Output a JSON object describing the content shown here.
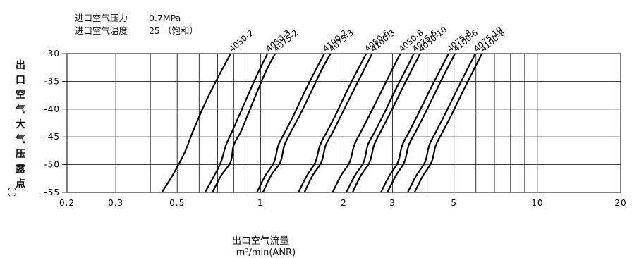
{
  "conditions": [
    {
      "label": "进口空气压力",
      "value": "0.7MPa"
    },
    {
      "label": "进口空气温度",
      "value": "25 （饱和）"
    }
  ],
  "chart_data": {
    "type": "line",
    "xscale": "log",
    "xlim": [
      0.2,
      20
    ],
    "ylim": [
      -55,
      -30
    ],
    "xticks": [
      0.2,
      0.3,
      0.5,
      1,
      2,
      3,
      5,
      10,
      20
    ],
    "xtick_labels": [
      "0.2",
      "0.3",
      "0.5",
      "1",
      "2",
      "3",
      "5",
      "10",
      "20"
    ],
    "yticks": [
      -30,
      -35,
      -40,
      -45,
      -50,
      -55
    ],
    "ytick_labels": [
      "-30",
      "-35",
      "-40",
      "-45",
      "-50",
      "-55"
    ],
    "ylabel": "出口空气大气压露点",
    "ylabel_unit": "（ ）",
    "xlabel": "出口空气流量",
    "xlabel_unit": "m³/min(ANR)",
    "grid": true,
    "series": [
      {
        "name": "4050-2",
        "points": [
          [
            0.44,
            -55
          ],
          [
            0.48,
            -52
          ],
          [
            0.53,
            -48
          ],
          [
            0.57,
            -44
          ],
          [
            0.63,
            -39
          ],
          [
            0.69,
            -35
          ],
          [
            0.78,
            -30
          ]
        ]
      },
      {
        "name": "4050-3",
        "points": [
          [
            0.63,
            -55
          ],
          [
            0.68,
            -52
          ],
          [
            0.72,
            -49.5
          ],
          [
            0.75,
            -46.5
          ],
          [
            0.79,
            -44
          ],
          [
            0.84,
            -41
          ],
          [
            0.91,
            -37
          ],
          [
            0.99,
            -33
          ],
          [
            1.06,
            -30
          ]
        ]
      },
      {
        "name": "4075-2",
        "points": [
          [
            0.67,
            -55
          ],
          [
            0.72,
            -52
          ],
          [
            0.78,
            -49.5
          ],
          [
            0.8,
            -46.5
          ],
          [
            0.85,
            -44
          ],
          [
            0.9,
            -41
          ],
          [
            0.97,
            -37
          ],
          [
            1.05,
            -33
          ],
          [
            1.13,
            -30
          ]
        ]
      },
      {
        "name": "4100-2",
        "points": [
          [
            0.97,
            -55
          ],
          [
            1.04,
            -52
          ],
          [
            1.12,
            -49.5
          ],
          [
            1.16,
            -46.5
          ],
          [
            1.23,
            -44
          ],
          [
            1.32,
            -41
          ],
          [
            1.44,
            -37
          ],
          [
            1.58,
            -33
          ],
          [
            1.7,
            -30
          ]
        ]
      },
      {
        "name": "4075-3",
        "points": [
          [
            1.02,
            -55
          ],
          [
            1.09,
            -52
          ],
          [
            1.18,
            -49.5
          ],
          [
            1.22,
            -46.5
          ],
          [
            1.29,
            -44
          ],
          [
            1.39,
            -41
          ],
          [
            1.52,
            -37
          ],
          [
            1.66,
            -33
          ],
          [
            1.79,
            -30
          ]
        ]
      },
      {
        "name": "4050-6",
        "points": [
          [
            1.37,
            -55
          ],
          [
            1.47,
            -52
          ],
          [
            1.58,
            -49.5
          ],
          [
            1.64,
            -46.5
          ],
          [
            1.74,
            -44
          ],
          [
            1.87,
            -41
          ],
          [
            2.04,
            -37
          ],
          [
            2.24,
            -33
          ],
          [
            2.41,
            -30
          ]
        ]
      },
      {
        "name": "4100-3",
        "points": [
          [
            1.44,
            -55
          ],
          [
            1.54,
            -52
          ],
          [
            1.66,
            -49.5
          ],
          [
            1.72,
            -46.5
          ],
          [
            1.83,
            -44
          ],
          [
            1.96,
            -41
          ],
          [
            2.15,
            -37
          ],
          [
            2.36,
            -33
          ],
          [
            2.53,
            -30
          ]
        ]
      },
      {
        "name": "4050-8",
        "points": [
          [
            1.82,
            -55
          ],
          [
            1.95,
            -52
          ],
          [
            2.1,
            -49.5
          ],
          [
            2.18,
            -46.5
          ],
          [
            2.31,
            -44
          ],
          [
            2.48,
            -41
          ],
          [
            2.72,
            -37
          ],
          [
            2.98,
            -33
          ],
          [
            3.2,
            -30
          ]
        ]
      },
      {
        "name": "4075-6",
        "points": [
          [
            2.04,
            -55
          ],
          [
            2.19,
            -52
          ],
          [
            2.36,
            -49.5
          ],
          [
            2.44,
            -46.5
          ],
          [
            2.59,
            -44
          ],
          [
            2.78,
            -41
          ],
          [
            3.04,
            -37
          ],
          [
            3.34,
            -33
          ],
          [
            3.58,
            -30
          ]
        ]
      },
      {
        "name": "4050-10",
        "points": [
          [
            2.15,
            -55
          ],
          [
            2.3,
            -52
          ],
          [
            2.48,
            -49.5
          ],
          [
            2.57,
            -46.5
          ],
          [
            2.72,
            -44
          ],
          [
            2.92,
            -41
          ],
          [
            3.2,
            -37
          ],
          [
            3.51,
            -33
          ],
          [
            3.77,
            -30
          ]
        ]
      },
      {
        "name": "4075-8",
        "points": [
          [
            2.72,
            -55
          ],
          [
            2.92,
            -52
          ],
          [
            3.14,
            -49.5
          ],
          [
            3.25,
            -46.5
          ],
          [
            3.45,
            -44
          ],
          [
            3.7,
            -41
          ],
          [
            4.05,
            -37
          ],
          [
            4.45,
            -33
          ],
          [
            4.78,
            -30
          ]
        ]
      },
      {
        "name": "4100-6",
        "points": [
          [
            2.87,
            -55
          ],
          [
            3.08,
            -52
          ],
          [
            3.31,
            -49.5
          ],
          [
            3.43,
            -46.5
          ],
          [
            3.64,
            -44
          ],
          [
            3.91,
            -41
          ],
          [
            4.28,
            -37
          ],
          [
            4.69,
            -33
          ],
          [
            5.04,
            -30
          ]
        ]
      },
      {
        "name": "4075-10",
        "points": [
          [
            3.4,
            -55
          ],
          [
            3.65,
            -52
          ],
          [
            3.93,
            -49.5
          ],
          [
            4.07,
            -46.5
          ],
          [
            4.31,
            -44
          ],
          [
            4.63,
            -41
          ],
          [
            5.07,
            -37
          ],
          [
            5.56,
            -33
          ],
          [
            5.97,
            -30
          ]
        ]
      },
      {
        "name": "4100-8",
        "points": [
          [
            3.6,
            -55
          ],
          [
            3.86,
            -52
          ],
          [
            4.15,
            -49.5
          ],
          [
            4.3,
            -46.5
          ],
          [
            4.56,
            -44
          ],
          [
            4.9,
            -41
          ],
          [
            5.36,
            -37
          ],
          [
            5.88,
            -33
          ],
          [
            6.31,
            -30
          ]
        ]
      }
    ]
  }
}
